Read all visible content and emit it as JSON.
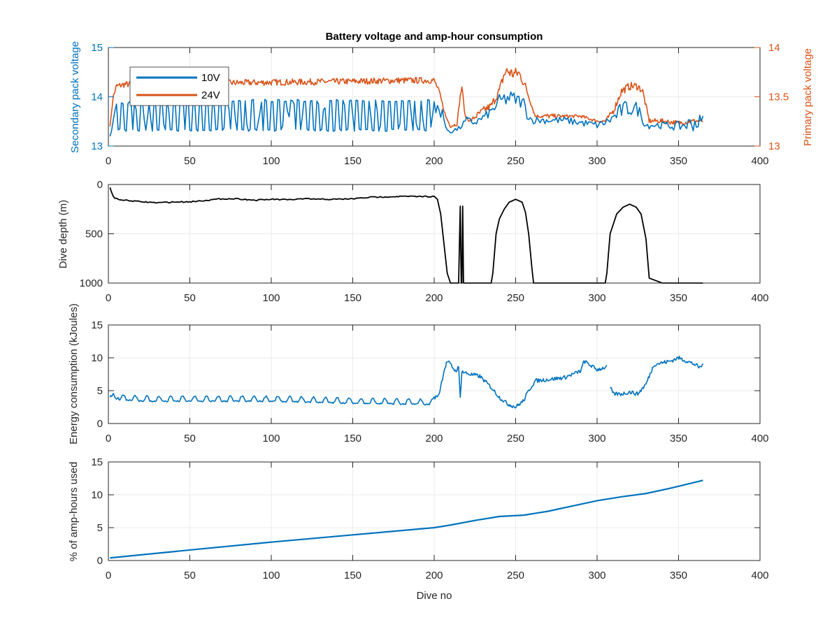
{
  "figure": {
    "title": "Battery voltage and amp-hour consumption",
    "background": "#ffffff",
    "colors": {
      "blue": "#0072bd",
      "orange": "#d95319",
      "black": "#000000",
      "axis": "#262626",
      "grid": "#ebebeb"
    }
  },
  "chart_data": [
    {
      "type": "line",
      "title": "Battery voltage and amp-hour consumption",
      "xlabel": "",
      "xlim": [
        0,
        400
      ],
      "xticks": [
        0,
        50,
        100,
        150,
        200,
        250,
        300,
        350,
        400
      ],
      "grid": true,
      "legend_location": "top-left",
      "left_axis": {
        "label": "Secondary pack voltage",
        "ylim": [
          13,
          15
        ],
        "yticks": [
          13,
          14,
          15
        ],
        "color": "#0072bd"
      },
      "right_axis": {
        "label": "Primary pack voltage",
        "ylim": [
          13,
          14
        ],
        "yticks": [
          13,
          13.5,
          14
        ],
        "ytick_labels": [
          "13",
          "13.5",
          "14"
        ],
        "color": "#d95319"
      },
      "series": [
        {
          "name": "10V",
          "axis": "left",
          "color": "#0072bd",
          "style": "oscillating",
          "x": [
            1,
            5,
            20,
            60,
            110,
            150,
            195,
            200,
            202,
            205,
            207,
            210,
            215,
            220,
            225,
            230,
            235,
            240,
            245,
            250,
            255,
            257,
            260,
            270,
            280,
            290,
            300,
            305,
            310,
            315,
            320,
            325,
            330,
            335,
            340,
            350,
            360,
            365
          ],
          "low": [
            13.1,
            13.3,
            13.3,
            13.3,
            13.3,
            13.3,
            13.3,
            13.4,
            13.5,
            13.6,
            13.3,
            13.25,
            13.3,
            13.45,
            13.4,
            13.5,
            13.6,
            13.75,
            13.8,
            13.8,
            13.75,
            13.55,
            13.45,
            13.45,
            13.45,
            13.4,
            13.35,
            13.4,
            13.45,
            13.55,
            13.6,
            13.6,
            13.35,
            13.35,
            13.35,
            13.3,
            13.3,
            13.3
          ],
          "high": [
            13.2,
            13.9,
            13.9,
            13.95,
            13.95,
            13.95,
            13.95,
            13.95,
            13.95,
            13.9,
            13.4,
            13.35,
            13.4,
            13.6,
            13.55,
            13.65,
            13.8,
            14.05,
            14.15,
            14.1,
            14.0,
            13.75,
            13.6,
            13.6,
            13.6,
            13.55,
            13.5,
            13.55,
            13.7,
            13.9,
            13.95,
            13.9,
            13.5,
            13.5,
            13.5,
            13.5,
            13.65,
            13.65
          ]
        },
        {
          "name": "24V",
          "axis": "right",
          "color": "#d95319",
          "style": "noisy",
          "x": [
            1,
            3,
            5,
            10,
            20,
            50,
            100,
            150,
            180,
            200,
            203,
            207,
            210,
            214,
            216,
            217,
            219,
            222,
            226,
            230,
            235,
            240,
            243,
            245,
            248,
            252,
            256,
            259,
            262,
            270,
            280,
            290,
            300,
            305,
            310,
            315,
            320,
            325,
            328,
            332,
            340,
            350,
            360,
            365
          ],
          "y": [
            13.2,
            13.5,
            13.6,
            13.62,
            13.62,
            13.63,
            13.64,
            13.65,
            13.66,
            13.66,
            13.55,
            13.3,
            13.2,
            13.22,
            13.5,
            13.6,
            13.3,
            13.25,
            13.3,
            13.35,
            13.4,
            13.55,
            13.72,
            13.75,
            13.72,
            13.73,
            13.6,
            13.45,
            13.3,
            13.3,
            13.3,
            13.3,
            13.25,
            13.25,
            13.35,
            13.55,
            13.6,
            13.6,
            13.55,
            13.25,
            13.25,
            13.23,
            13.25,
            13.25
          ],
          "noise": [
            0,
            0.02,
            0.04,
            0.04,
            0.04,
            0.04,
            0.04,
            0.04,
            0.04,
            0.04,
            0.03,
            0.02,
            0.02,
            0.02,
            0.03,
            0.03,
            0.02,
            0.02,
            0.04,
            0.05,
            0.05,
            0.06,
            0.07,
            0.08,
            0.08,
            0.07,
            0.05,
            0.03,
            0.02,
            0.03,
            0.02,
            0.02,
            0.02,
            0.02,
            0.04,
            0.05,
            0.05,
            0.05,
            0.04,
            0.03,
            0.03,
            0.03,
            0.03,
            0.02
          ]
        }
      ]
    },
    {
      "type": "line",
      "xlabel": "",
      "ylabel": "Dive depth (m)",
      "xlim": [
        0,
        400
      ],
      "ylim": [
        0,
        1000
      ],
      "y_reversed": true,
      "xticks": [
        0,
        50,
        100,
        150,
        200,
        250,
        300,
        350,
        400
      ],
      "yticks": [
        0,
        500,
        1000
      ],
      "grid": true,
      "series": [
        {
          "name": "",
          "color": "#000000",
          "x": [
            1,
            2,
            3,
            4,
            6,
            10,
            20,
            30,
            40,
            50,
            60,
            70,
            80,
            90,
            100,
            110,
            120,
            130,
            140,
            150,
            160,
            170,
            180,
            190,
            200,
            202,
            204,
            206,
            208,
            210,
            215,
            216,
            216.6,
            217,
            217.5,
            218,
            220,
            225,
            235,
            236,
            238,
            240,
            243,
            246,
            250,
            254,
            256,
            258,
            260,
            261,
            265,
            280,
            300,
            305,
            306,
            308,
            312,
            316,
            320,
            324,
            327,
            330,
            332,
            340,
            350,
            360,
            365
          ],
          "y": [
            30,
            80,
            120,
            140,
            150,
            160,
            175,
            185,
            178,
            175,
            160,
            145,
            145,
            160,
            150,
            155,
            145,
            150,
            150,
            145,
            130,
            125,
            120,
            122,
            120,
            150,
            300,
            600,
            900,
            1000,
            1000,
            220,
            1000,
            1000,
            220,
            1000,
            1000,
            1000,
            1000,
            900,
            500,
            350,
            250,
            180,
            150,
            180,
            280,
            500,
            850,
            1000,
            1000,
            1000,
            1000,
            1000,
            900,
            500,
            300,
            230,
            200,
            230,
            300,
            550,
            950,
            1000,
            1000,
            1000,
            1000
          ],
          "segment_breaks": []
        }
      ]
    },
    {
      "type": "line",
      "xlabel": "",
      "ylabel": "Energy consumption (kJoules)",
      "xlim": [
        0,
        400
      ],
      "ylim": [
        0,
        15
      ],
      "xticks": [
        0,
        50,
        100,
        150,
        200,
        250,
        300,
        350,
        400
      ],
      "yticks": [
        0,
        5,
        10,
        15
      ],
      "grid": true,
      "series": [
        {
          "name": "",
          "color": "#0072bd",
          "x": [
            1,
            3,
            5,
            20,
            60,
            100,
            150,
            199,
            200,
            203,
            206,
            208,
            210,
            213,
            215,
            216,
            217,
            218,
            222,
            228,
            235,
            240,
            245,
            250,
            255,
            258,
            262,
            270,
            280,
            290,
            292,
            300,
            306,
            null,
            308,
            310,
            315,
            320,
            325,
            330,
            335,
            345,
            350,
            355,
            360,
            363,
            365
          ],
          "y": [
            4.2,
            4.5,
            3.8,
            3.5,
            3.5,
            3.5,
            3.2,
            3.0,
            3.8,
            4.5,
            8.0,
            9.5,
            9.0,
            8.0,
            8.5,
            4.0,
            8.0,
            7.8,
            7.5,
            7.2,
            5.5,
            4.0,
            3.0,
            2.5,
            3.5,
            5.0,
            6.5,
            6.7,
            7.0,
            8.0,
            9.5,
            8.2,
            8.6,
            null,
            5.5,
            4.5,
            4.5,
            4.8,
            4.5,
            6.0,
            9.0,
            9.5,
            10.0,
            9.5,
            9.0,
            8.5,
            9.0
          ],
          "noise_until": 200,
          "noise_amp": 0.35
        }
      ]
    },
    {
      "type": "line",
      "xlabel": "Dive no",
      "ylabel": "% of amp-hours used",
      "xlim": [
        0,
        400
      ],
      "ylim": [
        0,
        15
      ],
      "xticks": [
        0,
        50,
        100,
        150,
        200,
        250,
        300,
        350,
        400
      ],
      "yticks": [
        0,
        5,
        10,
        15
      ],
      "grid": true,
      "series": [
        {
          "name": "",
          "color": "#0072bd",
          "x": [
            1,
            50,
            100,
            150,
            200,
            210,
            225,
            240,
            255,
            270,
            285,
            300,
            315,
            330,
            345,
            355,
            365
          ],
          "y": [
            0.4,
            1.6,
            2.8,
            3.9,
            5.0,
            5.4,
            6.1,
            6.7,
            6.9,
            7.5,
            8.3,
            9.1,
            9.7,
            10.2,
            11.0,
            11.6,
            12.2
          ]
        }
      ]
    }
  ]
}
